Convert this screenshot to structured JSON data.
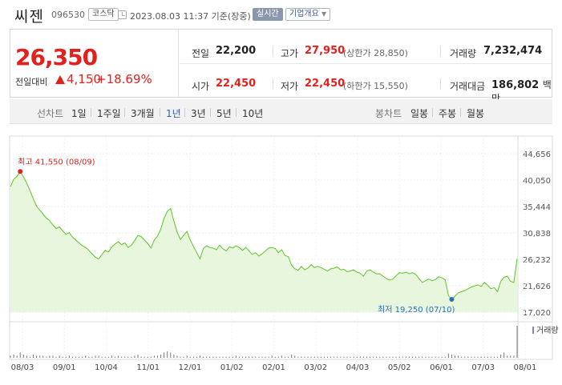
{
  "header": {
    "name": "씨젠",
    "code": "096530",
    "market": "코스닥",
    "datetime": "2023.08.03 11:37 기준(장중)",
    "realtime": "실시간",
    "company_info": "기업개요",
    "company_arrow": "▼"
  },
  "price": {
    "current": "26,350",
    "change_label": "전일대비",
    "change": "4,150",
    "change_pct": "+18.69%",
    "prev_label": "전일",
    "prev": "22,200",
    "high_label": "고가",
    "high": "27,950",
    "upper_limit": "(상한가 28,850)",
    "volume_label": "거래량",
    "volume": "7,232,474",
    "open_label": "시가",
    "open": "22,450",
    "low_label": "저가",
    "low": "22,450",
    "lower_limit": "(하한가 15,550)",
    "amount_label": "거래대금",
    "amount": "186,802",
    "amount_unit": "백만"
  },
  "tabs": {
    "line_label": "선차트",
    "periods": [
      "1일",
      "1주일",
      "3개월",
      "1년",
      "3년",
      "5년",
      "10년"
    ],
    "selected_period": "1년",
    "candle_label": "봉차트",
    "candles": [
      "일봉",
      "주봉",
      "월봉"
    ]
  },
  "colors": {
    "up": "#e0211c",
    "line": "#5ec52a",
    "fill": "#e7f6dd",
    "high_marker": "#e0211c",
    "low_marker": "#2d6ebf",
    "volume_bar": "#777777"
  },
  "chart_data": {
    "type": "area",
    "y_ticks": [
      "44,656",
      "40,050",
      "35,444",
      "30,838",
      "26,232",
      "21,626",
      "17,020"
    ],
    "ylim": [
      17020,
      44656
    ],
    "x_ticks": [
      "08/03",
      "09/01",
      "10/04",
      "11/01",
      "12/01",
      "01/02",
      "02/01",
      "03/02",
      "04/03",
      "05/02",
      "06/01",
      "07/03",
      "08/01"
    ],
    "grid": true,
    "high_annotation": "최고 41,550 (08/09)",
    "low_annotation": "최저 19,250 (07/10)",
    "high": {
      "index": 3,
      "value": 41550
    },
    "low": {
      "index": 135,
      "value": 19250
    },
    "volume_legend": "거래량",
    "price": [
      38900,
      40200,
      40700,
      41550,
      40600,
      39500,
      38200,
      36800,
      35500,
      34800,
      34100,
      33400,
      33000,
      32200,
      31600,
      31900,
      31200,
      30600,
      30900,
      30100,
      29600,
      29100,
      28600,
      28300,
      27800,
      27200,
      26600,
      26300,
      27100,
      27800,
      27500,
      28400,
      28900,
      29300,
      28800,
      29100,
      28300,
      28700,
      29500,
      30400,
      30200,
      29600,
      29000,
      28200,
      29600,
      30300,
      31500,
      33400,
      34600,
      35100,
      32900,
      31000,
      29700,
      30400,
      31100,
      29600,
      28500,
      27400,
      26300,
      28100,
      28600,
      28300,
      28200,
      27900,
      28700,
      28100,
      27700,
      28400,
      28200,
      28600,
      28300,
      27800,
      28300,
      27700,
      27100,
      27400,
      26800,
      27200,
      27700,
      28200,
      28300,
      28100,
      27400,
      27900,
      26900,
      26700,
      25200,
      24600,
      24300,
      25000,
      24400,
      24700,
      25300,
      24800,
      25000,
      24800,
      24500,
      24200,
      24600,
      24700,
      24900,
      24400,
      24500,
      24100,
      24200,
      24400,
      24000,
      23800,
      23300,
      24200,
      24400,
      24000,
      23700,
      23700,
      23300,
      22900,
      22600,
      22800,
      23400,
      23900,
      23800,
      24000,
      23700,
      23900,
      23600,
      22900,
      22200,
      22500,
      22800,
      22500,
      22700,
      23200,
      23000,
      22700,
      19900,
      19250,
      19800,
      20400,
      20600,
      20800,
      21100,
      21400,
      21600,
      21800,
      21500,
      22200,
      21700,
      21100,
      21300,
      20600,
      22400,
      23100,
      23300,
      22400,
      22200,
      26350
    ],
    "volume": [
      2,
      3,
      2,
      5,
      3,
      2,
      1,
      3,
      2,
      2,
      2,
      1,
      2,
      2,
      1,
      2,
      1,
      1,
      2,
      1,
      1,
      1,
      1,
      2,
      1,
      1,
      2,
      2,
      1,
      1,
      1,
      2,
      1,
      2,
      1,
      1,
      1,
      1,
      2,
      3,
      1,
      1,
      1,
      1,
      2,
      2,
      3,
      5,
      6,
      5,
      3,
      2,
      1,
      1,
      2,
      1,
      1,
      1,
      2,
      1,
      1,
      1,
      1,
      1,
      1,
      1,
      1,
      1,
      1,
      2,
      1,
      1,
      1,
      1,
      1,
      1,
      1,
      1,
      1,
      1,
      2,
      1,
      1,
      2,
      1,
      1,
      3,
      2,
      1,
      1,
      1,
      1,
      1,
      1,
      1,
      1,
      1,
      1,
      1,
      1,
      1,
      1,
      1,
      1,
      1,
      1,
      1,
      1,
      1,
      1,
      1,
      1,
      1,
      1,
      1,
      1,
      1,
      1,
      1,
      1,
      1,
      1,
      1,
      1,
      1,
      1,
      1,
      1,
      1,
      1,
      1,
      1,
      1,
      1,
      4,
      3,
      2,
      2,
      1,
      1,
      1,
      1,
      1,
      1,
      1,
      1,
      1,
      1,
      1,
      1,
      3,
      5,
      2,
      2,
      2,
      30
    ]
  }
}
